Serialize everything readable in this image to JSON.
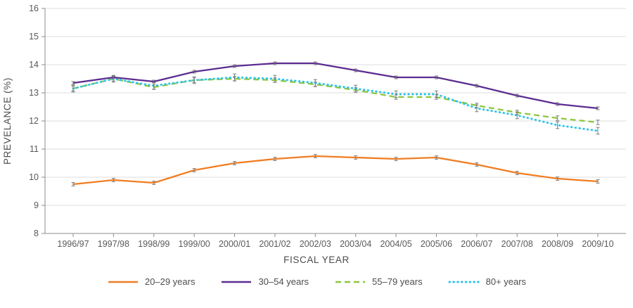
{
  "chart_data": {
    "type": "line",
    "title": "",
    "xlabel": "FISCAL YEAR",
    "ylabel": "PREVELANCE (%)",
    "ylim": [
      8,
      16
    ],
    "ytick_step": 1,
    "grid": true,
    "legend_position": "bottom",
    "error_bars": true,
    "categories": [
      "1996/97",
      "1997/98",
      "1998/99",
      "1999/00",
      "2000/01",
      "2001/02",
      "2002/03",
      "2003/04",
      "2004/05",
      "2005/06",
      "2006/07",
      "2007/08",
      "2008/09",
      "2009/10"
    ],
    "series": [
      {
        "name": "20–29 years",
        "color": "#F07D22",
        "style": "solid",
        "values": [
          9.75,
          9.9,
          9.8,
          10.25,
          10.5,
          10.65,
          10.75,
          10.7,
          10.65,
          10.7,
          10.45,
          10.15,
          9.95,
          9.85
        ],
        "error": 0.06
      },
      {
        "name": "30–54 years",
        "color": "#5C2D91",
        "style": "solid",
        "values": [
          13.35,
          13.55,
          13.4,
          13.75,
          13.95,
          14.05,
          14.05,
          13.8,
          13.55,
          13.55,
          13.25,
          12.9,
          12.6,
          12.45
        ],
        "error": 0.05
      },
      {
        "name": "55–79 years",
        "color": "#8DC63F",
        "style": "dashed",
        "values": [
          13.15,
          13.5,
          13.2,
          13.45,
          13.5,
          13.45,
          13.3,
          13.1,
          12.85,
          12.85,
          12.55,
          12.3,
          12.1,
          11.95
        ],
        "error": 0.08
      },
      {
        "name": "80+ years",
        "color": "#2BC5EA",
        "style": "dotted",
        "values": [
          13.15,
          13.5,
          13.25,
          13.45,
          13.55,
          13.5,
          13.35,
          13.15,
          12.95,
          12.95,
          12.45,
          12.2,
          11.85,
          11.65
        ],
        "error": 0.12
      }
    ],
    "colors": {
      "gridline": "#dcdcdc",
      "axis": "#8c8c8c",
      "error_bar": "#7b7b7b",
      "text": "#58595b"
    }
  }
}
